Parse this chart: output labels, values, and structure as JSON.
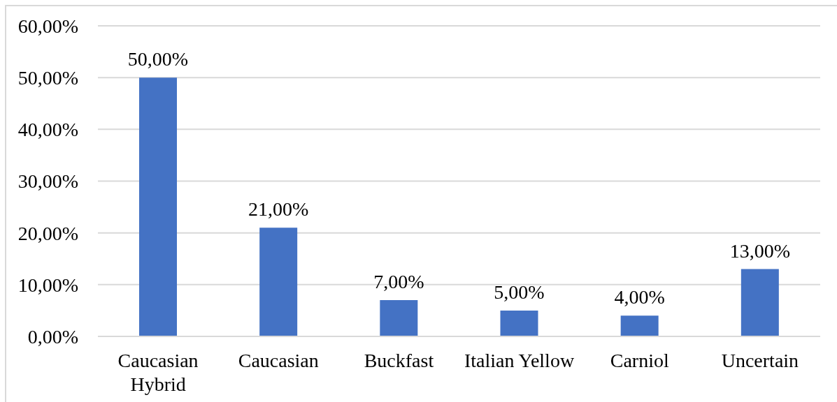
{
  "chart_data": {
    "type": "bar",
    "categories": [
      "Caucasian Hybrid",
      "Caucasian",
      "Buckfast",
      "Italian Yellow",
      "Carniol",
      "Uncertain"
    ],
    "values": [
      50,
      21,
      7,
      5,
      4,
      13
    ],
    "color": "#4472c4",
    "ylim": [
      0,
      60
    ],
    "yticks": [
      {
        "value": 0,
        "label": "0,00%"
      },
      {
        "value": 10,
        "label": "10,00%"
      },
      {
        "value": 20,
        "label": "20,00%"
      },
      {
        "value": 30,
        "label": "30,00%"
      },
      {
        "value": 40,
        "label": "40,00%"
      },
      {
        "value": 50,
        "label": "50,00%"
      },
      {
        "value": 60,
        "label": "60,00%"
      }
    ],
    "grid": "y",
    "value_labels": [
      "50,00%",
      "21,00%",
      "7,00%",
      "5,00%",
      "4,00%",
      "13,00%"
    ]
  }
}
